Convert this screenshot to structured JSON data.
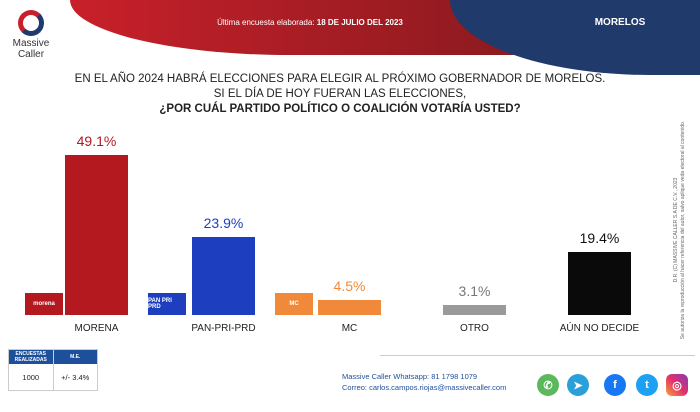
{
  "header": {
    "survey_label": "Última encuesta elaborada:",
    "survey_date": "18 DE JULIO DEL 2023",
    "state": "MORELOS",
    "logo_line1": "Massive",
    "logo_line2": "Caller"
  },
  "question": {
    "line1": "EN EL AÑO 2024 HABRÁ ELECCIONES PARA ELEGIR AL PRÓXIMO GOBERNADOR DE MORELOS.",
    "line2": "SI EL DÍA DE HOY FUERAN LAS ELECCIONES,",
    "line3": "¿POR CUÁL PARTIDO POLÍTICO O COALICIÓN VOTARÍA USTED?"
  },
  "side_note": {
    "line1": "D.R. (C) MASSIVE CALLER S.A DE C.V., 2023",
    "line2": "Se autoriza la reproducción al hacer referencia del autor, salvo aplique veda electoral al contenido."
  },
  "chart_data": {
    "type": "bar",
    "title": "¿POR CUÁL PARTIDO POLÍTICO O COALICIÓN VOTARÍA USTED?",
    "categories": [
      "MORENA",
      "PAN-PRI-PRD",
      "MC",
      "OTRO",
      "AÚN NO DECIDE"
    ],
    "values": [
      49.1,
      23.9,
      4.5,
      3.1,
      19.4
    ],
    "labels": [
      "49.1%",
      "23.9%",
      "4.5%",
      "3.1%",
      "19.4%"
    ],
    "colors": [
      "#b3191f",
      "#1d3fbf",
      "#f08a3a",
      "#9a9a9a",
      "#0a0a0a"
    ],
    "label_colors": [
      "#b3191f",
      "#1d3fbf",
      "#f08a3a",
      "#777777",
      "#111111"
    ],
    "party_logos": [
      "morena",
      "PAN PRI PRD",
      "MC"
    ],
    "ylim": [
      0,
      50
    ],
    "grid": false
  },
  "table": {
    "header_surveys": "ENCUESTAS REALIZADAS",
    "header_me": "M.E.",
    "surveys": "1000",
    "me": "+/- 3.4%"
  },
  "contact": {
    "whatsapp": "Massive Caller Whatsapp: 81 1798 1079",
    "email": "Correo: carlos.campos.riojas@massivecaller.com"
  }
}
